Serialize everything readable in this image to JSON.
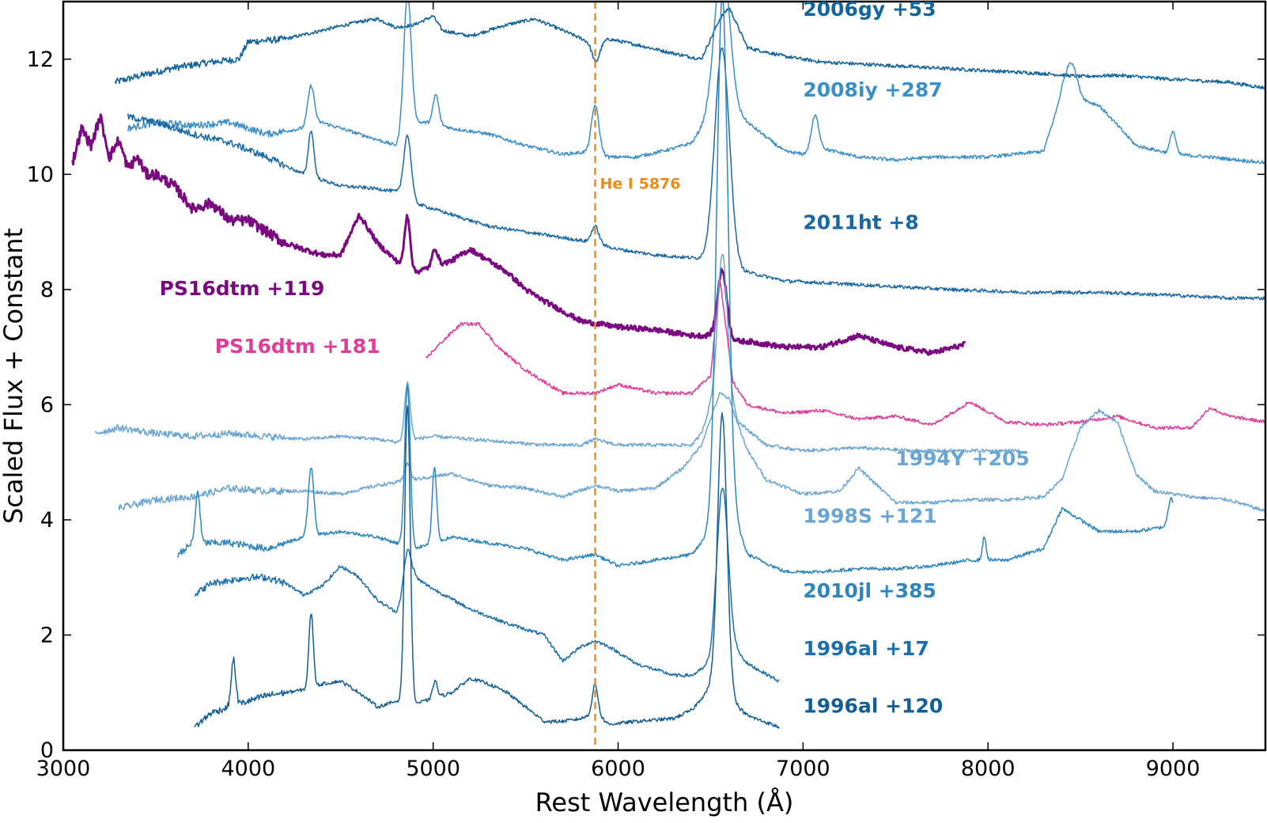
{
  "chart_data": {
    "type": "line",
    "title": "",
    "xlabel": "Rest Wavelength (Å)",
    "ylabel": "Scaled Flux + Constant",
    "xlim": [
      3000,
      9500
    ],
    "ylim": [
      0,
      13
    ],
    "xticks": [
      "3000",
      "4000",
      "5000",
      "6000",
      "7000",
      "8000",
      "9000"
    ],
    "yticks": [
      "0",
      "2",
      "4",
      "6",
      "8",
      "10",
      "12"
    ],
    "grid": false,
    "legend": "inline labels at right of each spectrum",
    "annotations": [
      {
        "text": "He I 5876",
        "x": 5876,
        "color": "#ee8c17"
      }
    ],
    "series": [
      {
        "name": "2006gy +53",
        "label_x": 7000,
        "label_y": 12.75,
        "color": "#13659a",
        "width": 1.6,
        "offset": 12.1,
        "x": [
          3280,
          3400,
          3600,
          3800,
          3950,
          4000,
          4200,
          4400,
          4600,
          4700,
          4800,
          4900,
          5000,
          5050,
          5200,
          5400,
          5550,
          5700,
          5876,
          5950,
          6100,
          6300,
          6450,
          6550,
          6600,
          6700,
          6900,
          7100,
          7400,
          7700,
          8000,
          8300,
          8500,
          8700,
          9000,
          9300,
          9500
        ],
        "y": [
          11.6,
          11.7,
          11.85,
          11.95,
          12.0,
          12.3,
          12.35,
          12.5,
          12.65,
          12.7,
          12.55,
          12.6,
          12.75,
          12.5,
          12.4,
          12.6,
          12.7,
          12.5,
          12.25,
          12.35,
          12.25,
          12.1,
          12.0,
          12.7,
          12.9,
          12.2,
          12.05,
          11.95,
          11.9,
          11.85,
          11.8,
          11.75,
          11.7,
          11.72,
          11.65,
          11.6,
          11.5
        ],
        "lines": [
          [
            5880,
            -0.3,
            20
          ]
        ]
      },
      {
        "name": "2008iy +287",
        "label_x": 7000,
        "label_y": 11.35,
        "color": "#3a8fc6",
        "width": 1.5,
        "offset": 10.4,
        "x": [
          3350,
          3500,
          3700,
          3900,
          4100,
          4300,
          4400,
          4600,
          4800,
          4900,
          5000,
          5100,
          5300,
          5500,
          5700,
          5876,
          5950,
          6100,
          6300,
          6400,
          6550,
          6700,
          6900,
          7000,
          7100,
          7300,
          7500,
          7700,
          8000,
          8300,
          8400,
          8600,
          8800,
          9000,
          9200,
          9500
        ],
        "y": [
          10.8,
          10.9,
          10.85,
          10.9,
          10.7,
          10.8,
          10.9,
          10.7,
          10.5,
          10.9,
          10.9,
          10.8,
          10.7,
          10.5,
          10.35,
          10.4,
          10.3,
          10.3,
          10.45,
          10.55,
          11.3,
          10.9,
          10.4,
          10.35,
          10.45,
          10.3,
          10.25,
          10.3,
          10.3,
          10.4,
          11.4,
          11.2,
          10.5,
          10.35,
          10.3,
          10.2
        ],
        "lines": [
          [
            4861,
            2.4,
            20
          ],
          [
            4340,
            0.7,
            18
          ],
          [
            5876,
            0.8,
            20
          ],
          [
            5015,
            0.5,
            15
          ],
          [
            6563,
            2.5,
            40
          ],
          [
            7065,
            0.6,
            20
          ],
          [
            8450,
            0.6,
            30
          ],
          [
            9000,
            0.4,
            15
          ]
        ]
      },
      {
        "name": "2011ht +8",
        "label_x": 7000,
        "label_y": 9.05,
        "color": "#1968a4",
        "width": 1.5,
        "offset": 8.2,
        "x": [
          3350,
          3500,
          3700,
          3900,
          4100,
          4300,
          4500,
          4700,
          4800,
          4900,
          5100,
          5300,
          5600,
          5800,
          5876,
          6000,
          6200,
          6400,
          6500,
          6600,
          6700,
          6900,
          7200,
          7500,
          7800,
          8200,
          8600,
          9000,
          9300,
          9500
        ],
        "y": [
          11.0,
          10.9,
          10.7,
          10.55,
          10.3,
          10.0,
          9.8,
          9.75,
          9.7,
          9.5,
          9.3,
          9.1,
          8.95,
          8.85,
          8.8,
          8.7,
          8.6,
          8.55,
          8.5,
          8.3,
          8.3,
          8.15,
          8.1,
          8.05,
          8.0,
          7.95,
          7.95,
          7.9,
          7.85,
          7.85
        ],
        "lines": [
          [
            4861,
            1.1,
            20
          ],
          [
            4340,
            0.8,
            15
          ],
          [
            6563,
            3.8,
            40
          ],
          [
            5876,
            0.3,
            20
          ]
        ]
      },
      {
        "name": "PS16dtm +119",
        "label_x": 3520,
        "label_y": 7.9,
        "color": "#7a0a80",
        "width": 3.0,
        "offset": 7.0,
        "x": [
          3050,
          3100,
          3150,
          3200,
          3250,
          3300,
          3350,
          3400,
          3450,
          3500,
          3600,
          3700,
          3800,
          3900,
          4000,
          4100,
          4200,
          4300,
          4400,
          4500,
          4600,
          4700,
          4800,
          4900,
          5000,
          5100,
          5200,
          5300,
          5400,
          5500,
          5600,
          5800,
          6000,
          6200,
          6400,
          6500,
          6600,
          6700,
          6900,
          7100,
          7300,
          7500,
          7700,
          7880
        ],
        "y": [
          10.2,
          10.8,
          10.5,
          11.0,
          10.3,
          10.6,
          10.1,
          10.3,
          10.0,
          10.0,
          9.8,
          9.4,
          9.5,
          9.2,
          9.2,
          9.0,
          8.8,
          8.7,
          8.6,
          8.6,
          9.3,
          8.8,
          8.5,
          8.3,
          8.4,
          8.5,
          8.7,
          8.5,
          8.3,
          8.0,
          7.8,
          7.45,
          7.35,
          7.3,
          7.2,
          7.2,
          7.1,
          7.1,
          7.0,
          7.0,
          7.2,
          7.0,
          6.9,
          7.05
        ],
        "lines": [
          [
            4861,
            0.9,
            15
          ],
          [
            5010,
            0.3,
            15
          ],
          [
            6563,
            1.2,
            25
          ]
        ]
      },
      {
        "name": "PS16dtm +181",
        "label_x": 3820,
        "label_y": 6.9,
        "color": "#de3d9c",
        "width": 1.5,
        "offset": 5.6,
        "x": [
          4960,
          5050,
          5150,
          5250,
          5350,
          5500,
          5700,
          5876,
          6000,
          6200,
          6400,
          6500,
          6550,
          6620,
          6700,
          6900,
          7100,
          7300,
          7500,
          7700,
          7900,
          8100,
          8300,
          8500,
          8700,
          8900,
          9100,
          9200,
          9300,
          9500
        ],
        "y": [
          6.8,
          7.1,
          7.4,
          7.4,
          7.0,
          6.6,
          6.2,
          6.2,
          6.35,
          6.2,
          6.2,
          6.5,
          8.2,
          6.4,
          6.0,
          5.85,
          5.9,
          5.75,
          5.8,
          5.65,
          6.05,
          5.7,
          5.65,
          5.7,
          5.8,
          5.6,
          5.6,
          5.95,
          5.8,
          5.7
        ],
        "lines": []
      },
      {
        "name": "1994Y +205",
        "label_x": 7500,
        "label_y": 4.95,
        "color": "#6aa6d1",
        "width": 1.5,
        "offset": 5.5,
        "x": [
          3170,
          3300,
          3500,
          3700,
          3900,
          4100,
          4300,
          4500,
          4700,
          4800,
          5000,
          5200,
          5400,
          5600,
          5800,
          5876,
          6000,
          6200,
          6400,
          6450,
          6500,
          6600,
          6650,
          6800,
          7000,
          7300,
          7600,
          7900,
          8170
        ],
        "y": [
          5.5,
          5.6,
          5.5,
          5.45,
          5.5,
          5.45,
          5.4,
          5.45,
          5.4,
          5.35,
          5.45,
          5.4,
          5.35,
          5.3,
          5.3,
          5.4,
          5.3,
          5.3,
          5.3,
          5.5,
          6.0,
          6.2,
          5.7,
          5.3,
          5.2,
          5.25,
          5.2,
          5.2,
          5.2
        ],
        "lines": [
          [
            4861,
            1.0,
            15
          ],
          [
            6563,
            2.5,
            25
          ]
        ]
      },
      {
        "name": "1998S +121",
        "label_x": 7000,
        "label_y": 3.95,
        "color": "#6aa6d1",
        "width": 1.5,
        "offset": 4.2,
        "x": [
          3300,
          3500,
          3700,
          3900,
          4100,
          4300,
          4500,
          4700,
          4900,
          5100,
          5300,
          5500,
          5700,
          5876,
          6000,
          6200,
          6350,
          6450,
          6550,
          6600,
          6700,
          6800,
          7000,
          7200,
          7300,
          7500,
          7700,
          7900,
          8100,
          8300,
          8400,
          8500,
          8600,
          8700,
          8800,
          8900,
          9100,
          9300,
          9500
        ],
        "y": [
          4.2,
          4.35,
          4.4,
          4.55,
          4.5,
          4.5,
          4.45,
          4.6,
          4.7,
          4.8,
          4.6,
          4.55,
          4.4,
          4.6,
          4.5,
          4.55,
          4.9,
          5.3,
          6.2,
          6.1,
          5.2,
          4.7,
          4.45,
          4.5,
          4.9,
          4.3,
          4.3,
          4.35,
          4.35,
          4.4,
          4.7,
          5.6,
          5.9,
          5.7,
          4.8,
          4.5,
          4.4,
          4.35,
          4.15
        ],
        "lines": [
          [
            4861,
            0.3,
            15
          ]
        ]
      },
      {
        "name": "2010jl +385",
        "label_x": 7000,
        "label_y": 2.65,
        "color": "#2e86bd",
        "width": 1.5,
        "offset": 3.3,
        "x": [
          3620,
          3700,
          3900,
          4100,
          4300,
          4500,
          4700,
          4900,
          5100,
          5300,
          5500,
          5700,
          5876,
          6000,
          6200,
          6400,
          6500,
          6600,
          6700,
          6900,
          7100,
          7300,
          7500,
          7700,
          7900,
          8100,
          8300,
          8400,
          8600,
          8800,
          9000
        ],
        "y": [
          3.4,
          3.6,
          3.6,
          3.5,
          3.7,
          3.8,
          3.7,
          3.5,
          3.7,
          3.6,
          3.5,
          3.3,
          3.4,
          3.2,
          3.3,
          3.4,
          3.8,
          4.3,
          3.4,
          3.1,
          3.1,
          3.15,
          3.15,
          3.2,
          3.3,
          3.3,
          3.5,
          4.2,
          3.8,
          3.8,
          3.9
        ],
        "lines": [
          [
            4861,
            2.8,
            15
          ],
          [
            4340,
            1.2,
            15
          ],
          [
            3727,
            0.9,
            12
          ],
          [
            5007,
            1.3,
            12
          ],
          [
            6563,
            9.0,
            30
          ],
          [
            7980,
            0.4,
            10
          ],
          [
            8990,
            0.5,
            15
          ]
        ]
      },
      {
        "name": "1996al +17",
        "label_x": 7000,
        "label_y": 1.65,
        "color": "#1d6fab",
        "width": 1.5,
        "offset": 2.0,
        "x": [
          3710,
          3800,
          3900,
          4000,
          4100,
          4200,
          4300,
          4400,
          4500,
          4600,
          4700,
          4800,
          4900,
          5000,
          5200,
          5400,
          5600,
          5700,
          5800,
          5876,
          5950,
          6100,
          6300,
          6400,
          6500,
          6600,
          6700,
          6870
        ],
        "y": [
          2.7,
          2.9,
          2.95,
          3.0,
          3.0,
          2.9,
          2.7,
          2.85,
          3.2,
          3.0,
          2.6,
          2.4,
          3.0,
          2.8,
          2.45,
          2.2,
          2.0,
          1.55,
          1.8,
          1.9,
          1.8,
          1.5,
          1.3,
          1.3,
          1.5,
          1.9,
          1.5,
          1.2
        ],
        "lines": [
          [
            4861,
            0.7,
            20
          ],
          [
            6563,
            2.8,
            30
          ]
        ]
      },
      {
        "name": "1996al +120",
        "label_x": 7000,
        "label_y": 0.65,
        "color": "#155e93",
        "width": 1.5,
        "offset": 0.4,
        "x": [
          3710,
          3800,
          3900,
          4000,
          4100,
          4200,
          4300,
          4400,
          4500,
          4600,
          4700,
          4800,
          4900,
          5000,
          5100,
          5200,
          5300,
          5400,
          5500,
          5600,
          5700,
          5800,
          5876,
          5950,
          6100,
          6300,
          6400,
          6500,
          6600,
          6650,
          6700,
          6870
        ],
        "y": [
          0.4,
          0.65,
          0.75,
          0.85,
          0.95,
          1.0,
          1.05,
          1.15,
          1.2,
          1.0,
          0.75,
          0.85,
          0.8,
          0.9,
          1.0,
          1.25,
          1.15,
          1.0,
          0.75,
          0.5,
          0.5,
          0.55,
          0.65,
          0.45,
          0.5,
          0.55,
          0.7,
          1.1,
          1.0,
          0.75,
          0.6,
          0.4
        ],
        "lines": [
          [
            4861,
            5.2,
            15
          ],
          [
            4340,
            1.3,
            12
          ],
          [
            3920,
            0.8,
            12
          ],
          [
            6563,
            4.8,
            25
          ],
          [
            5876,
            0.5,
            15
          ],
          [
            5010,
            0.3,
            12
          ]
        ]
      }
    ]
  }
}
